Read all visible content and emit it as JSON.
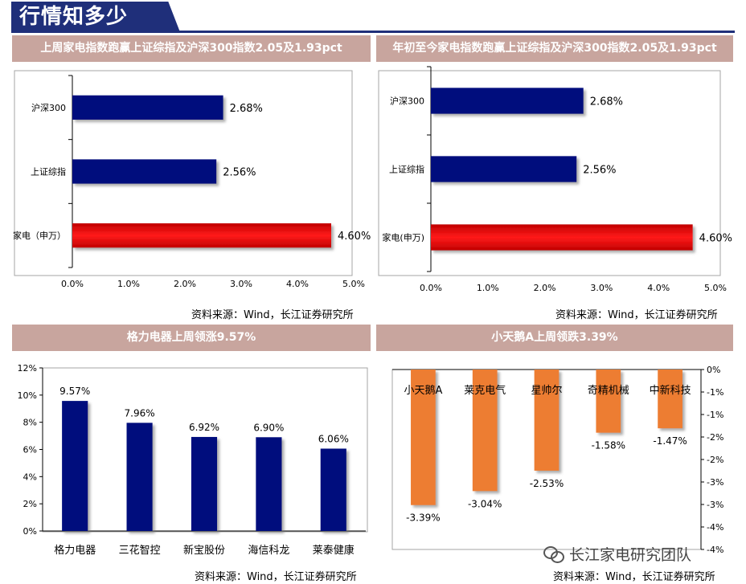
{
  "page_title": "行情知多少",
  "source_text": "资料来源：Wind，长江证券研究所",
  "watermark_text": "长江家电研究团队",
  "colors": {
    "navy": "#000a7d",
    "red": "#e60000",
    "orange": "#ed7d31",
    "header": "#c8a59e",
    "title": "#1f2f7a"
  },
  "chart_data": [
    {
      "type": "bar",
      "orientation": "horizontal",
      "title": "上周家电指数跑赢上证综指及沪深300指数2.05及1.93pct",
      "categories": [
        "沪深300",
        "上证综指",
        "家电（申万）"
      ],
      "values": [
        2.68,
        2.56,
        4.6
      ],
      "labels": [
        "2.68%",
        "2.56%",
        "4.60%"
      ],
      "xlim": [
        0,
        5
      ],
      "ticks": [
        "0.0%",
        "1.0%",
        "2.0%",
        "3.0%",
        "4.0%",
        "5.0%"
      ]
    },
    {
      "type": "bar",
      "orientation": "horizontal",
      "title": "年初至今家电指数跑赢上证综指及沪深300指数2.05及1.93pct",
      "categories": [
        "沪深300",
        "上证综指",
        "家电(申万)"
      ],
      "values": [
        2.68,
        2.56,
        4.6
      ],
      "labels": [
        "2.68%",
        "2.56%",
        "4.60%"
      ],
      "xlim": [
        0,
        5
      ],
      "ticks": [
        "0.0%",
        "1.0%",
        "2.0%",
        "3.0%",
        "4.0%",
        "5.0%"
      ]
    },
    {
      "type": "bar",
      "orientation": "vertical",
      "title": "格力电器上周领涨9.57%",
      "categories": [
        "格力电器",
        "三花智控",
        "新宝股份",
        "海信科龙",
        "莱泰健康"
      ],
      "values": [
        9.57,
        7.96,
        6.92,
        6.9,
        6.06
      ],
      "labels": [
        "9.57%",
        "7.96%",
        "6.92%",
        "6.90%",
        "6.06%"
      ],
      "ylim": [
        0,
        12
      ],
      "ticks": [
        "0%",
        "2%",
        "4%",
        "6%",
        "8%",
        "10%",
        "12%"
      ]
    },
    {
      "type": "bar",
      "orientation": "vertical",
      "title": "小天鹅A上周领跌3.39%",
      "categories": [
        "小天鹅A",
        "莱克电气",
        "星帅尔",
        "奇精机械",
        "中新科技"
      ],
      "values": [
        -3.39,
        -3.04,
        -2.53,
        -1.58,
        -1.47
      ],
      "labels": [
        "-3.39%",
        "-3.04%",
        "-2.53%",
        "-1.58%",
        "-1.47%"
      ],
      "ylim": [
        -4.5,
        0
      ],
      "ticks": [
        "0%",
        "-1%",
        "-1%",
        "-2%",
        "-2%",
        "-3%",
        "-3%",
        "-4%",
        "-4%"
      ]
    }
  ]
}
